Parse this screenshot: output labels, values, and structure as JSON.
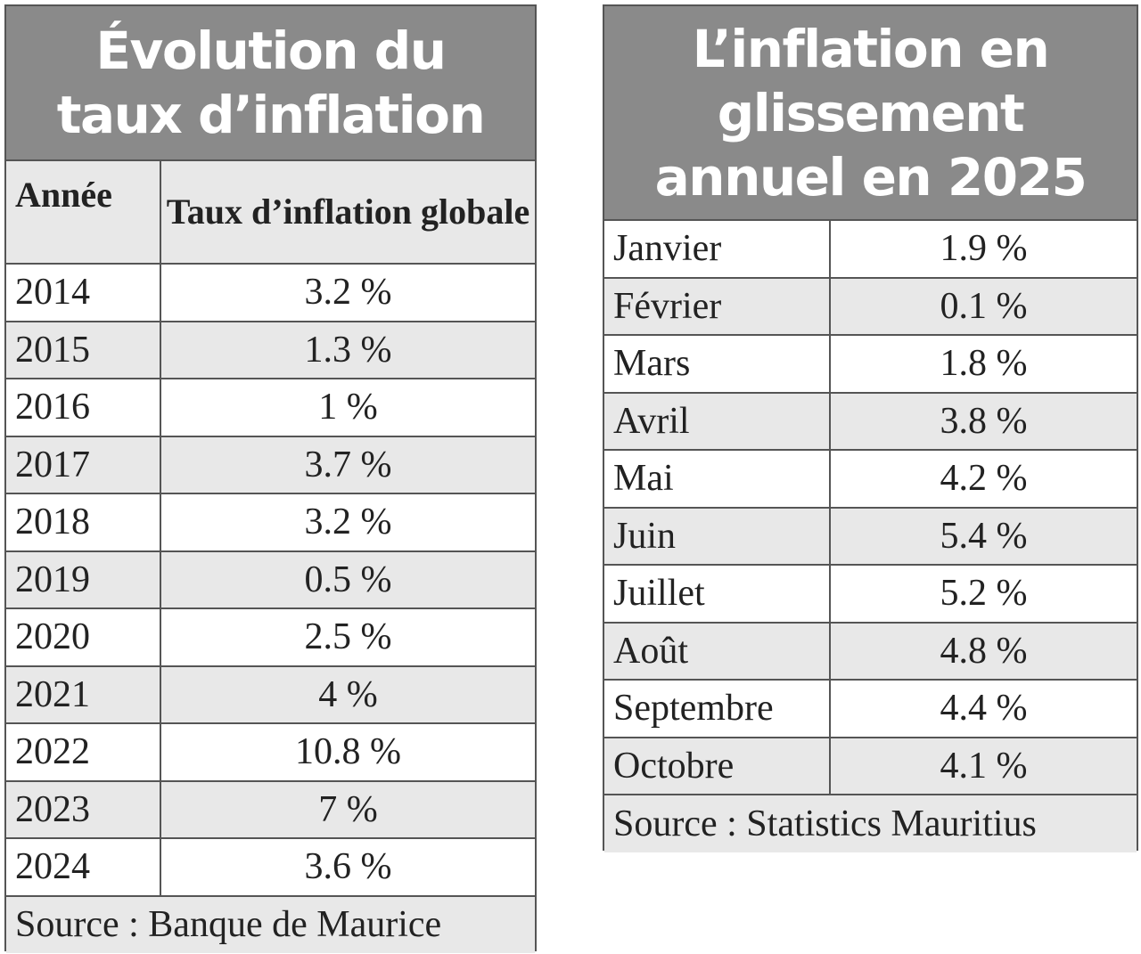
{
  "left": {
    "title": [
      "Évolution du",
      "taux d’inflation"
    ],
    "header": [
      "Année",
      "Taux d’inflation globale"
    ],
    "rows": [
      [
        "2014",
        "3.2 %"
      ],
      [
        "2015",
        "1.3 %"
      ],
      [
        "2016",
        "1 %"
      ],
      [
        "2017",
        "3.7 %"
      ],
      [
        "2018",
        "3.2 %"
      ],
      [
        "2019",
        "0.5 %"
      ],
      [
        "2020",
        "2.5 %"
      ],
      [
        "2021",
        "4 %"
      ],
      [
        "2022",
        "10.8 %"
      ],
      [
        "2023",
        "7 %"
      ],
      [
        "2024",
        "3.6 %"
      ]
    ],
    "source": "Source : Banque de Maurice"
  },
  "right": {
    "title": [
      "L’inflation en",
      "glissement",
      "annuel en 2025"
    ],
    "rows": [
      [
        "Janvier",
        "1.9 %"
      ],
      [
        "Février",
        "0.1 %"
      ],
      [
        "Mars",
        "1.8 %"
      ],
      [
        "Avril",
        "3.8 %"
      ],
      [
        "Mai",
        "4.2 %"
      ],
      [
        "Juin",
        "5.4 %"
      ],
      [
        "Juillet",
        "5.2 %"
      ],
      [
        "Août",
        "4.8 %"
      ],
      [
        "Septembre",
        "4.4 %"
      ],
      [
        "Octobre",
        "4.1 %"
      ]
    ],
    "source": "Source : Statistics Mauritius"
  }
}
